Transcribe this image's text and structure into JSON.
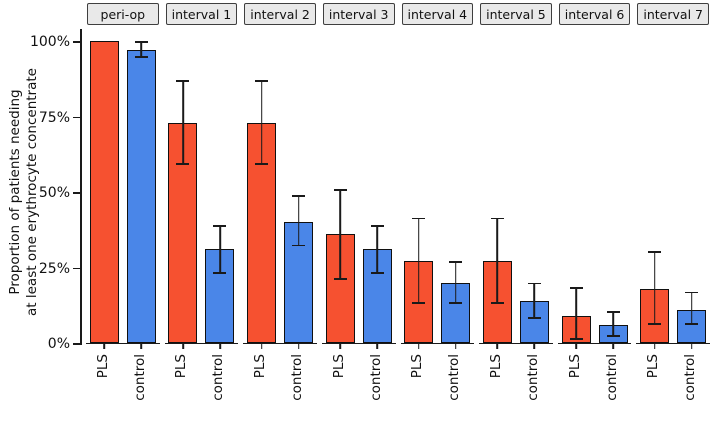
{
  "figure": {
    "background": "#ffffff",
    "axis_color": "#1a1a1a",
    "strip_background": "#E9E9E9",
    "strip_border": "#3f3f3f"
  },
  "y_axis": {
    "title_line1": "Proportion of patients needing",
    "title_line2": "at least one erythrocyte concentrate",
    "ticks": [
      {
        "value": 0,
        "label": "0%"
      },
      {
        "value": 25,
        "label": "25%"
      },
      {
        "value": 50,
        "label": "50%"
      },
      {
        "value": 75,
        "label": "75%"
      },
      {
        "value": 100,
        "label": "100%"
      }
    ]
  },
  "chart_data": {
    "type": "bar",
    "title": "",
    "xlabel": "",
    "ylabel": "Proportion of patients needing at least one erythrocyte concentrate",
    "ylim": [
      0,
      104
    ],
    "grid": false,
    "legend": "none",
    "groups": [
      "PLS",
      "control"
    ],
    "colors": {
      "PLS": "#F65130",
      "control": "#4A86E8"
    },
    "error_bars": "95% CI, black, capped",
    "facets": [
      {
        "label": "peri-op",
        "bars": [
          {
            "group": "PLS",
            "value": 100,
            "ci": null
          },
          {
            "group": "control",
            "value": 97,
            "ci": [
              94.5,
              100
            ]
          }
        ]
      },
      {
        "label": "interval 1",
        "bars": [
          {
            "group": "PLS",
            "value": 73,
            "ci": [
              59,
              87
            ]
          },
          {
            "group": "control",
            "value": 31,
            "ci": [
              23,
              39
            ]
          }
        ]
      },
      {
        "label": "interval 2",
        "bars": [
          {
            "group": "PLS",
            "value": 73,
            "ci": [
              59,
              87
            ]
          },
          {
            "group": "control",
            "value": 40,
            "ci": [
              32,
              49
            ]
          }
        ]
      },
      {
        "label": "interval 3",
        "bars": [
          {
            "group": "PLS",
            "value": 36,
            "ci": [
              21,
              51
            ]
          },
          {
            "group": "control",
            "value": 31,
            "ci": [
              23,
              39
            ]
          }
        ]
      },
      {
        "label": "interval 4",
        "bars": [
          {
            "group": "PLS",
            "value": 27,
            "ci": [
              13,
              41.5
            ]
          },
          {
            "group": "control",
            "value": 20,
            "ci": [
              13,
              27
            ]
          }
        ]
      },
      {
        "label": "interval 5",
        "bars": [
          {
            "group": "PLS",
            "value": 27,
            "ci": [
              13,
              41.5
            ]
          },
          {
            "group": "control",
            "value": 14,
            "ci": [
              8,
              20
            ]
          }
        ]
      },
      {
        "label": "interval 6",
        "bars": [
          {
            "group": "PLS",
            "value": 9,
            "ci": [
              1,
              18.5
            ]
          },
          {
            "group": "control",
            "value": 6,
            "ci": [
              2,
              10.5
            ]
          }
        ]
      },
      {
        "label": "interval 7",
        "bars": [
          {
            "group": "PLS",
            "value": 18,
            "ci": [
              6,
              30.5
            ]
          },
          {
            "group": "control",
            "value": 11,
            "ci": [
              6,
              17
            ]
          }
        ]
      }
    ]
  }
}
